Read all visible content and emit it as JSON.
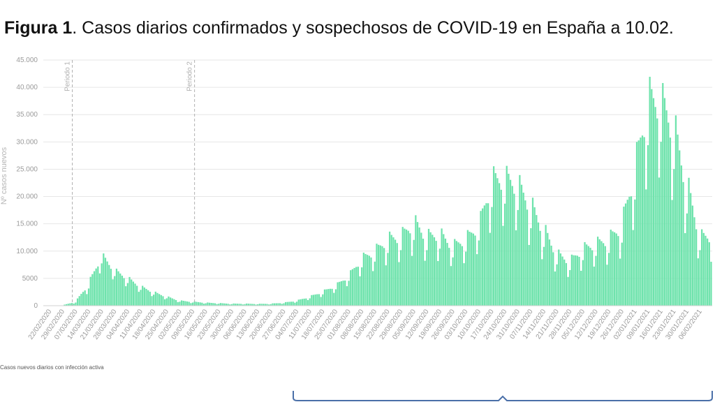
{
  "title": {
    "label": "Figura 1",
    "text": ". Casos diarios confirmados y sospechosos de COVID-19 en España a 10.02."
  },
  "legend_text": "Casos nuevos diarios con infección activa",
  "colors": {
    "bar": "#6ee3ac",
    "grid": "#e6e6e6",
    "period_line": "#b0b0b0",
    "bracket": "#4a6fa8"
  },
  "chart_data": {
    "type": "bar",
    "title": "Casos diarios confirmados y sospechosos de COVID-19 en España a 10.02.",
    "ylabel": "Nº casos nuevos",
    "xlabel": "",
    "ylim": [
      0,
      45000
    ],
    "yticks": [
      {
        "value": 0,
        "label": "0"
      },
      {
        "value": 5000,
        "label": "5000"
      },
      {
        "value": 10000,
        "label": "10.000"
      },
      {
        "value": 15000,
        "label": "15.000"
      },
      {
        "value": 20000,
        "label": "20.000"
      },
      {
        "value": 25000,
        "label": "25.000"
      },
      {
        "value": 30000,
        "label": "30.000"
      },
      {
        "value": 35000,
        "label": "35.000"
      },
      {
        "value": 40000,
        "label": "40.000"
      },
      {
        "value": 45000,
        "label": "45.000"
      }
    ],
    "x_tick_labels": [
      "22/02/2020",
      "29/02/2020",
      "07/03/2020",
      "14/03/2020",
      "21/03/2020",
      "28/03/2020",
      "04/04/2020",
      "11/04/2020",
      "18/04/2020",
      "25/04/2020",
      "02/05/2020",
      "09/05/2020",
      "16/05/2020",
      "23/05/2020",
      "30/05/2020",
      "06/06/2020",
      "13/06/2020",
      "20/06/2020",
      "27/06/2020",
      "04/07/2020",
      "11/07/2020",
      "18/07/2020",
      "25/07/2020",
      "01/08/2020",
      "08/08/2020",
      "15/08/2020",
      "22/08/2020",
      "29/08/2020",
      "05/09/2020",
      "12/09/2020",
      "19/09/2020",
      "26/09/2020",
      "03/10/2020",
      "10/10/2020",
      "17/10/2020",
      "24/10/2020",
      "31/10/2020",
      "07/11/2020",
      "14/11/2020",
      "21/11/2020",
      "28/11/2020",
      "05/12/2020",
      "12/12/2020",
      "19/12/2020",
      "26/12/2020",
      "02/01/2021",
      "09/01/2021",
      "16/01/2021",
      "23/01/2021",
      "30/01/2021",
      "06/02/2021"
    ],
    "periods": [
      {
        "label": "Periodo 1",
        "week_index": 1.8
      },
      {
        "label": "Periodo 2",
        "week_index": 11.2
      }
    ],
    "weekly_series": {
      "name": "Casos nuevos diarios con infección activa",
      "week_start": [
        "22/02/2020",
        "29/02/2020",
        "07/03/2020",
        "14/03/2020",
        "21/03/2020",
        "28/03/2020",
        "04/04/2020",
        "11/04/2020",
        "18/04/2020",
        "25/04/2020",
        "02/05/2020",
        "09/05/2020",
        "16/05/2020",
        "23/05/2020",
        "30/05/2020",
        "06/06/2020",
        "13/06/2020",
        "20/06/2020",
        "27/06/2020",
        "04/07/2020",
        "11/07/2020",
        "18/07/2020",
        "25/07/2020",
        "01/08/2020",
        "08/08/2020",
        "15/08/2020",
        "22/08/2020",
        "29/08/2020",
        "05/09/2020",
        "12/09/2020",
        "19/09/2020",
        "26/09/2020",
        "03/10/2020",
        "10/10/2020",
        "17/10/2020",
        "24/10/2020",
        "31/10/2020",
        "07/11/2020",
        "14/11/2020",
        "21/11/2020",
        "28/11/2020",
        "05/12/2020",
        "12/12/2020",
        "19/12/2020",
        "26/12/2020",
        "02/01/2021",
        "09/01/2021",
        "16/01/2021",
        "23/01/2021",
        "30/01/2021",
        "06/02/2021"
      ],
      "peak_values": [
        0,
        100,
        800,
        4500,
        10000,
        7000,
        5500,
        3800,
        2700,
        1800,
        1000,
        800,
        600,
        500,
        400,
        400,
        350,
        400,
        600,
        1000,
        1800,
        2800,
        4000,
        6000,
        9500,
        11000,
        13500,
        14000,
        17000,
        14000,
        14500,
        12000,
        13500,
        16000,
        25500,
        25800,
        24500,
        20500,
        15500,
        10500,
        9000,
        11500,
        12500,
        13500,
        16500,
        28000,
        42000,
        41500,
        36500,
        25000,
        14000
      ],
      "low_values": [
        0,
        0,
        300,
        1500,
        5000,
        3500,
        2500,
        1800,
        1200,
        800,
        400,
        300,
        250,
        200,
        150,
        150,
        150,
        150,
        250,
        400,
        800,
        1200,
        1800,
        2800,
        4000,
        4500,
        5000,
        5500,
        6000,
        5500,
        5500,
        5000,
        5500,
        7000,
        9000,
        10000,
        9000,
        6500,
        5000,
        4000,
        3500,
        4500,
        5000,
        5000,
        5500,
        9000,
        14000,
        16000,
        11000,
        7000,
        5500
      ]
    }
  }
}
